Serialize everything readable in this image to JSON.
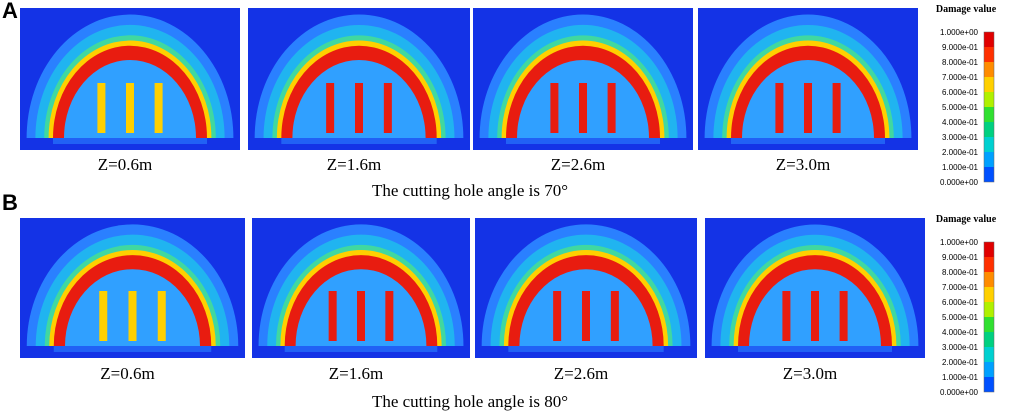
{
  "panels": [
    {
      "label": "A",
      "caption": "The cutting hole angle is 70°",
      "images": [
        {
          "caption": "Z=0.6m"
        },
        {
          "caption": "Z=1.6m"
        },
        {
          "caption": "Z=2.6m"
        },
        {
          "caption": "Z=3.0m"
        }
      ],
      "legend": {
        "title": "Damage value",
        "ticks": [
          "1.000e+00",
          "9.000e-01",
          "8.000e-01",
          "7.000e-01",
          "6.000e-01",
          "5.000e-01",
          "4.000e-01",
          "3.000e-01",
          "2.000e-01",
          "1.000e-01",
          "0.000e+00"
        ]
      }
    },
    {
      "label": "B",
      "caption": "The cutting hole angle is 80°",
      "images": [
        {
          "caption": "Z=0.6m"
        },
        {
          "caption": "Z=1.6m"
        },
        {
          "caption": "Z=2.6m"
        },
        {
          "caption": "Z=3.0m"
        }
      ],
      "legend": {
        "title": "Damage value",
        "ticks": [
          "1.000e+00",
          "9.000e-01",
          "8.000e-01",
          "7.000e-01",
          "6.000e-01",
          "5.000e-01",
          "4.000e-01",
          "3.000e-01",
          "2.000e-01",
          "1.000e-01",
          "0.000e+00"
        ]
      }
    }
  ]
}
